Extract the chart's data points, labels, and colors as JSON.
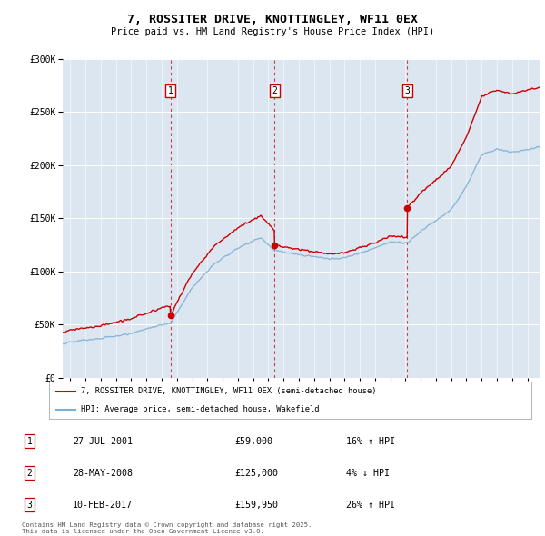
{
  "title": "7, ROSSITER DRIVE, KNOTTINGLEY, WF11 0EX",
  "subtitle": "Price paid vs. HM Land Registry's House Price Index (HPI)",
  "legend_line1": "7, ROSSITER DRIVE, KNOTTINGLEY, WF11 0EX (semi-detached house)",
  "legend_line2": "HPI: Average price, semi-detached house, Wakefield",
  "footnote": "Contains HM Land Registry data © Crown copyright and database right 2025.\nThis data is licensed under the Open Government Licence v3.0.",
  "sales": [
    {
      "label": "1",
      "date": "27-JUL-2001",
      "price": 59000,
      "hpi_rel": "16% ↑ HPI",
      "year": 2001.57
    },
    {
      "label": "2",
      "date": "28-MAY-2008",
      "price": 125000,
      "hpi_rel": "4% ↓ HPI",
      "year": 2008.41
    },
    {
      "label": "3",
      "date": "10-FEB-2017",
      "price": 159950,
      "hpi_rel": "26% ↑ HPI",
      "year": 2017.12
    }
  ],
  "plot_bg_color": "#dce6f1",
  "hpi_color": "#7bafd4",
  "sale_color": "#cc0000",
  "ylim": [
    0,
    300000
  ],
  "xlim_start": 1994.5,
  "xlim_end": 2025.8,
  "marker_y": 270000
}
